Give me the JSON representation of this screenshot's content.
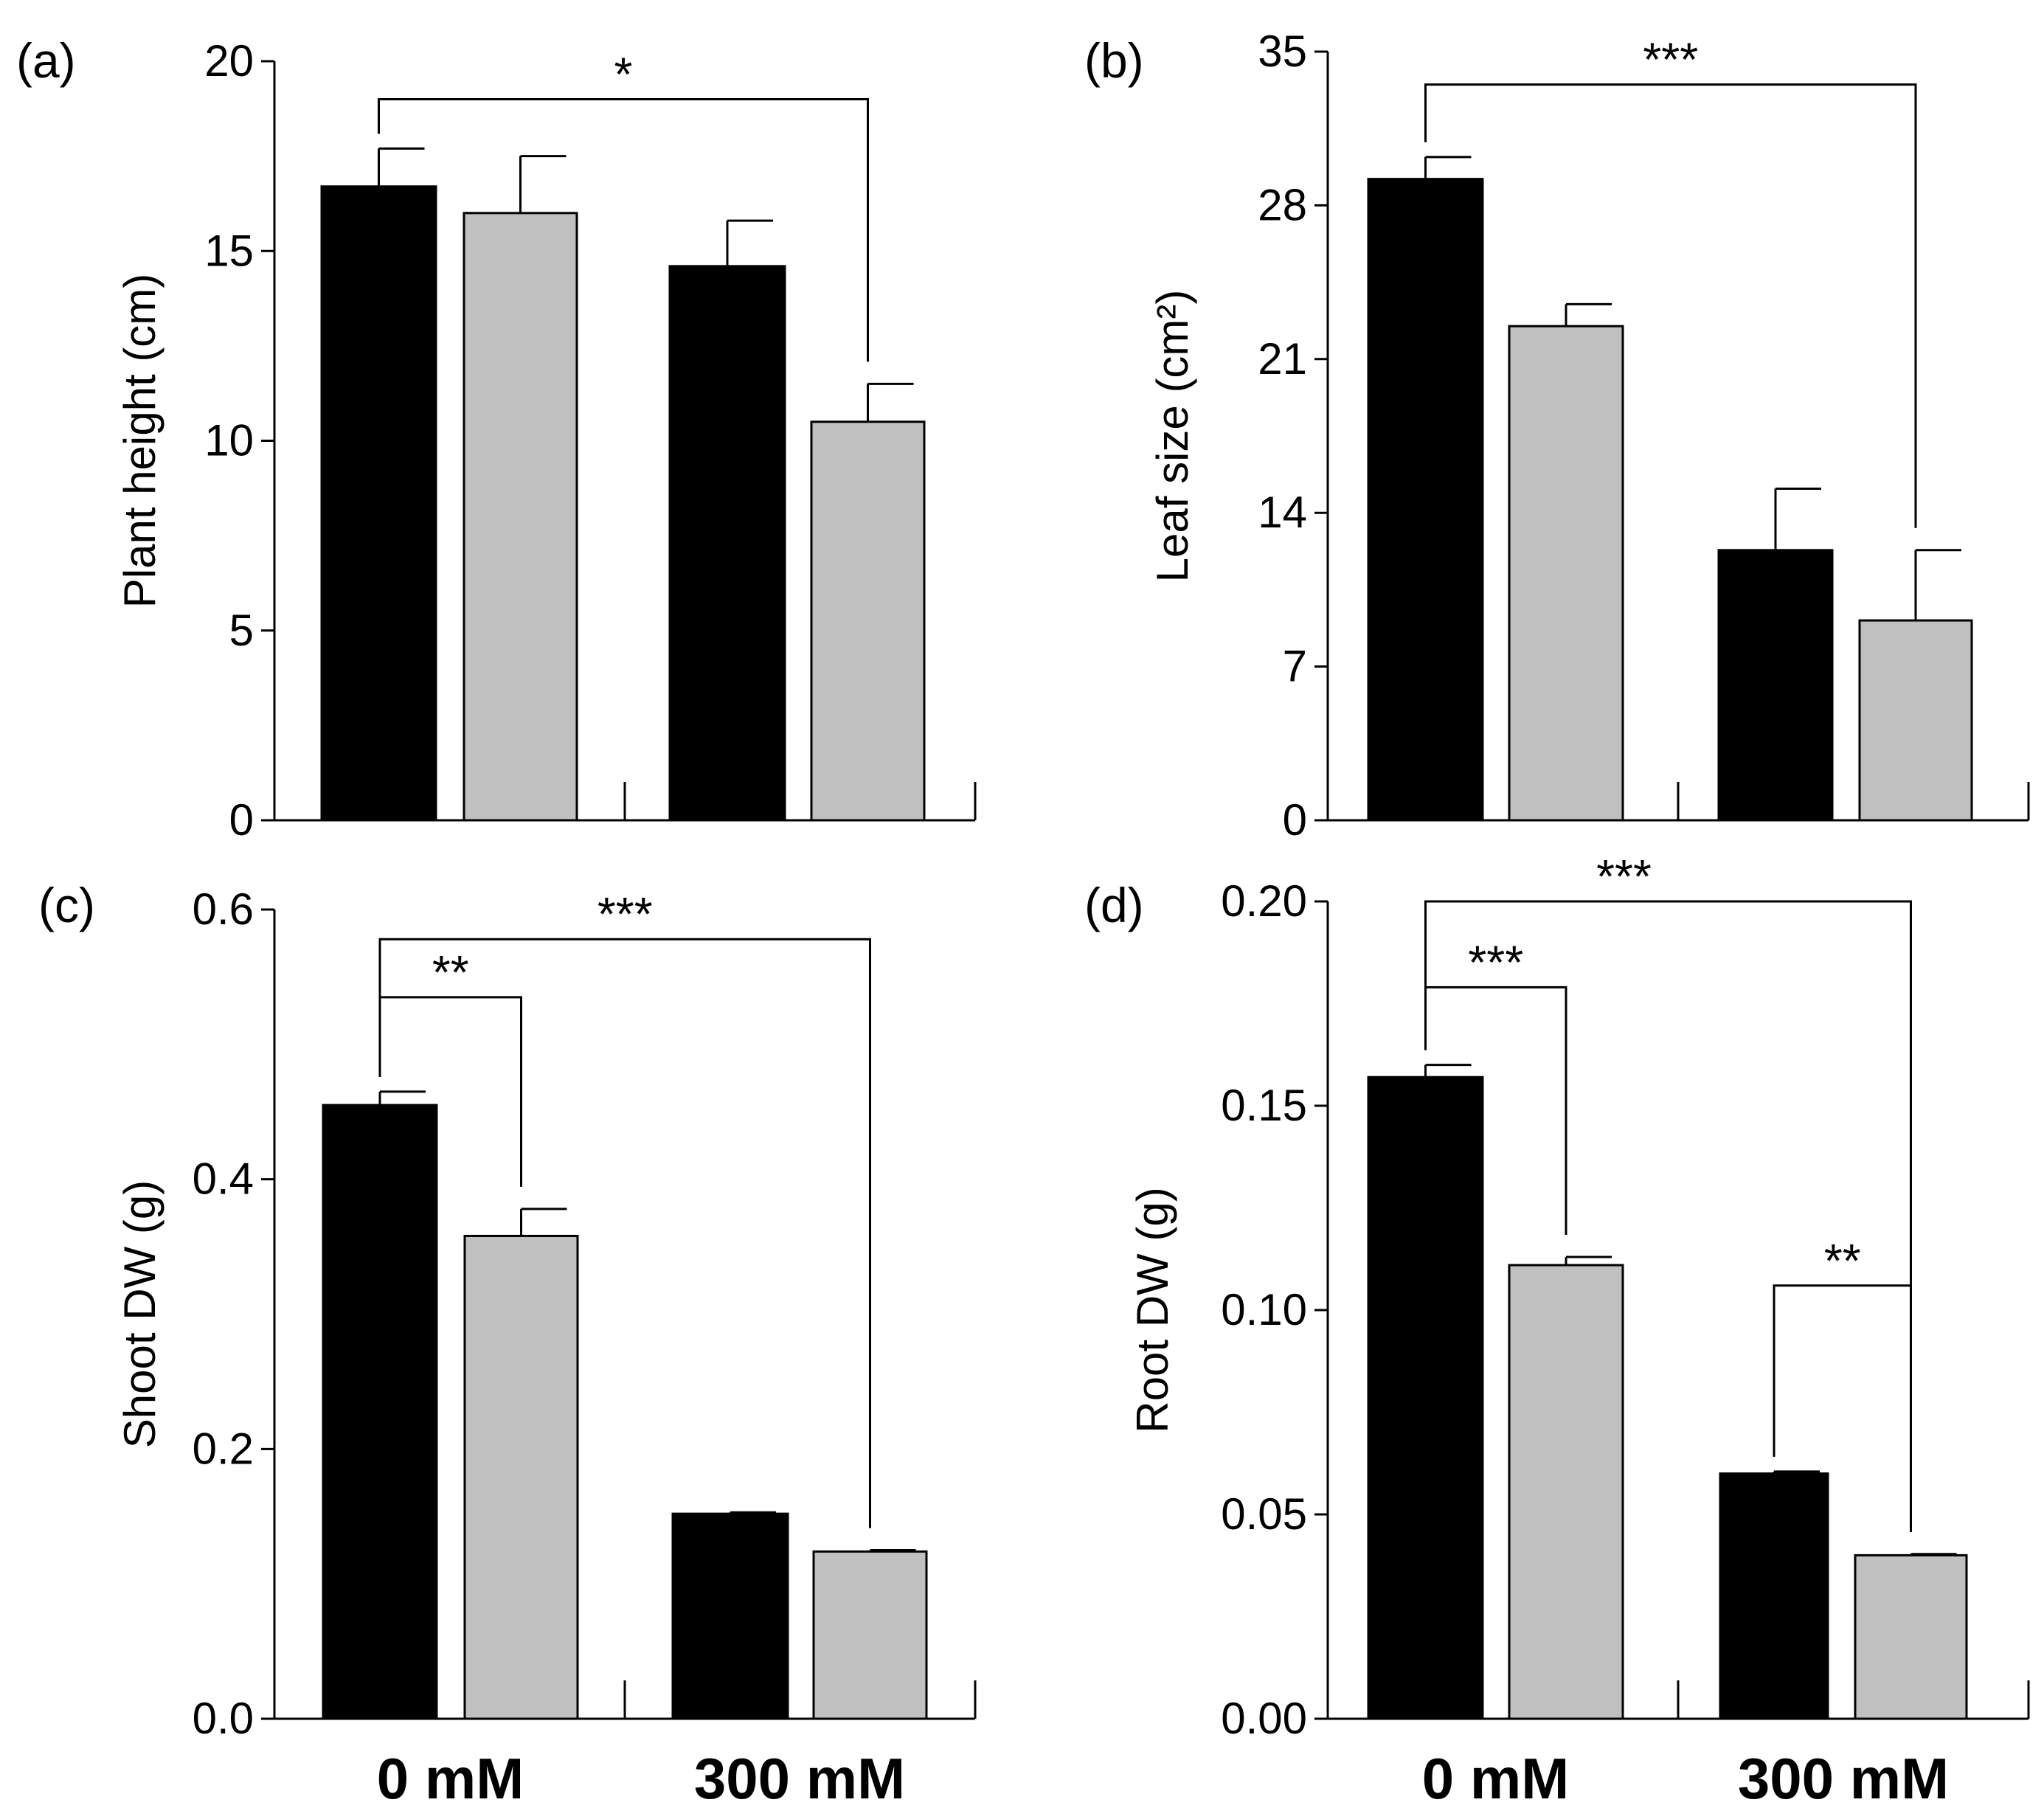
{
  "colors": {
    "series_black": "#000000",
    "series_gray": "#c0c0c0"
  },
  "chart_data": [
    {
      "type": "bar",
      "panel": "(a)",
      "ylabel": "Plant height (cm)",
      "xlabel": "",
      "ylim": [
        0,
        20
      ],
      "yticks": [
        "0",
        "5",
        "10",
        "15",
        "20"
      ],
      "categories": [
        "",
        ""
      ],
      "series": [
        {
          "name": "black",
          "values": [
            16.7,
            14.6
          ],
          "errors": [
            1.0,
            1.2
          ]
        },
        {
          "name": "gray",
          "values": [
            16.0,
            10.5
          ],
          "errors": [
            1.5,
            1.0
          ]
        }
      ],
      "annotations": [
        {
          "text": "*",
          "from": [
            0,
            0
          ],
          "to": [
            1,
            1
          ],
          "level": 19.0
        }
      ]
    },
    {
      "type": "bar",
      "panel": "(b)",
      "ylabel": "Leaf size (cm²)",
      "xlabel": "",
      "ylim": [
        0,
        35
      ],
      "yticks": [
        "0",
        "7",
        "14",
        "21",
        "28",
        "35"
      ],
      "categories": [
        "",
        ""
      ],
      "series": [
        {
          "name": "black",
          "values": [
            29.2,
            12.3
          ],
          "errors": [
            1.0,
            2.8
          ]
        },
        {
          "name": "gray",
          "values": [
            22.5,
            9.1
          ],
          "errors": [
            1.0,
            3.2
          ]
        }
      ],
      "annotations": [
        {
          "text": "***",
          "from": [
            0,
            0
          ],
          "to": [
            1,
            1
          ],
          "level": 33.5
        }
      ]
    },
    {
      "type": "bar",
      "panel": "(c)",
      "ylabel": "Shoot DW (g)",
      "xlabel": "",
      "ylim": [
        0,
        0.6
      ],
      "yticks": [
        "0.0",
        "0.2",
        "0.4",
        "0.6"
      ],
      "categories": [
        "0 mM",
        "300 mM"
      ],
      "series": [
        {
          "name": "black",
          "values": [
            0.455,
            0.152
          ],
          "errors": [
            0.01,
            0.001
          ]
        },
        {
          "name": "gray",
          "values": [
            0.358,
            0.124
          ],
          "errors": [
            0.02,
            0.001
          ]
        }
      ],
      "annotations": [
        {
          "text": "**",
          "from": [
            0,
            0
          ],
          "to": [
            1,
            0
          ],
          "level": 0.535
        },
        {
          "text": "***",
          "from": [
            0,
            0
          ],
          "to": [
            1,
            1
          ],
          "level": 0.578
        }
      ]
    },
    {
      "type": "bar",
      "panel": "(d)",
      "ylabel": "Root DW (g)",
      "xlabel": "",
      "ylim": [
        0,
        0.2
      ],
      "yticks": [
        "0.00",
        "0.05",
        "0.10",
        "0.15",
        "0.20"
      ],
      "categories": [
        "0 mM",
        "300 mM"
      ],
      "series": [
        {
          "name": "black",
          "values": [
            0.157,
            0.06
          ],
          "errors": [
            0.003,
            0.0005
          ]
        },
        {
          "name": "gray",
          "values": [
            0.111,
            0.04
          ],
          "errors": [
            0.002,
            0.0003
          ]
        }
      ],
      "annotations": [
        {
          "text": "***",
          "from": [
            0,
            0
          ],
          "to": [
            1,
            0
          ],
          "level": 0.179
        },
        {
          "text": "***",
          "from": [
            0,
            0
          ],
          "to": [
            1,
            1
          ],
          "level": 0.2
        },
        {
          "text": "**",
          "from": [
            0,
            1
          ],
          "to": [
            1,
            1
          ],
          "level": 0.106
        }
      ]
    }
  ]
}
